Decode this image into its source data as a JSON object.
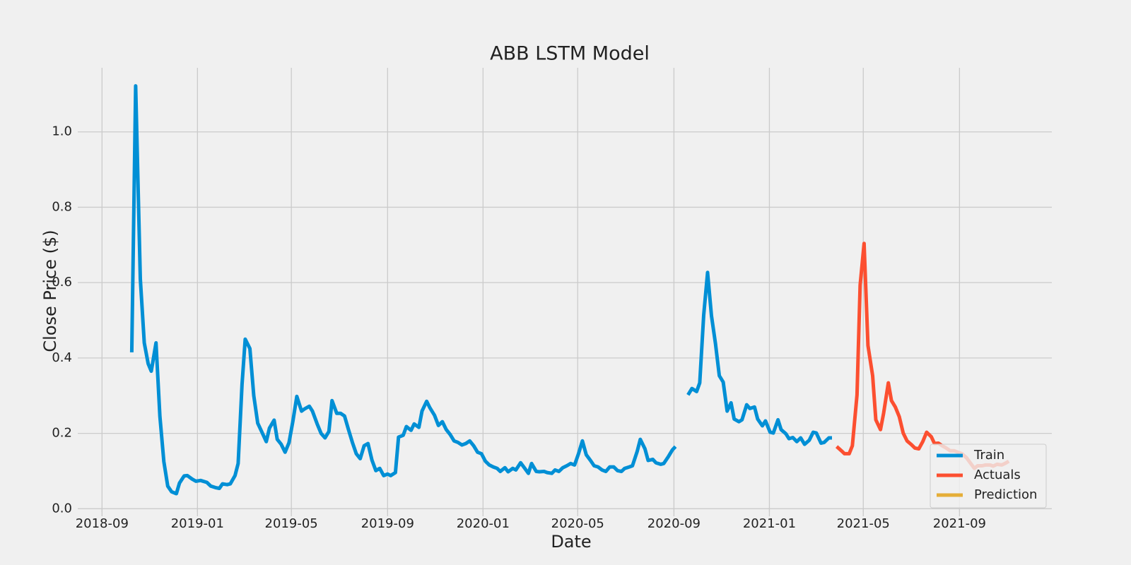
{
  "chart_data": {
    "type": "line",
    "title": "ABB LSTM Model",
    "x_label": "Date",
    "y_label": "Close Price ($)",
    "xlim": [
      "2018-08-01",
      "2021-12-28"
    ],
    "ylim": [
      -0.02,
      1.17
    ],
    "xticks": [
      "2018-09",
      "2019-01",
      "2019-05",
      "2019-09",
      "2020-01",
      "2020-05",
      "2020-09",
      "2021-01",
      "2021-05",
      "2021-09"
    ],
    "yticks": [
      {
        "value": 0,
        "label": "0.0"
      },
      0.2,
      0.4,
      0.6,
      0.8,
      {
        "value": 1,
        "label": "1.0"
      }
    ],
    "grid": true,
    "legend": "lower right",
    "series": [
      {
        "name": "Train",
        "color": "#008fd5",
        "x": [
          "2018-10-09",
          "2018-10-14",
          "2018-10-20",
          "2018-10-25",
          "2018-10-30",
          "2018-11-03",
          "2018-11-09",
          "2018-11-14",
          "2018-11-19",
          "2018-11-24",
          "2018-11-29",
          "2018-12-05",
          "2018-12-09",
          "2018-12-15",
          "2018-12-19",
          "2018-12-25",
          "2018-12-30",
          "2019-01-05",
          "2019-01-13",
          "2019-01-18",
          "2019-01-24",
          "2019-01-29",
          "2019-02-02",
          "2019-02-08",
          "2019-02-12",
          "2019-02-18",
          "2019-02-22",
          "2019-02-27",
          "2019-03-03",
          "2019-03-09",
          "2019-03-14",
          "2019-03-19",
          "2019-03-24",
          "2019-03-30",
          "2019-04-03",
          "2019-04-09",
          "2019-04-13",
          "2019-04-18",
          "2019-04-23",
          "2019-04-28",
          "2019-05-03",
          "2019-05-08",
          "2019-05-14",
          "2019-05-18",
          "2019-05-24",
          "2019-05-28",
          "2019-06-03",
          "2019-06-08",
          "2019-06-13",
          "2019-06-18",
          "2019-06-22",
          "2019-06-28",
          "2019-07-03",
          "2019-07-08",
          "2019-07-13",
          "2019-07-18",
          "2019-07-23",
          "2019-07-28",
          "2019-08-02",
          "2019-08-07",
          "2019-08-12",
          "2019-08-17",
          "2019-08-22",
          "2019-08-27",
          "2019-09-01",
          "2019-09-05",
          "2019-09-11",
          "2019-09-15",
          "2019-09-21",
          "2019-09-25",
          "2019-10-01",
          "2019-10-05",
          "2019-10-11",
          "2019-10-15",
          "2019-10-21",
          "2019-10-25",
          "2019-10-31",
          "2019-11-05",
          "2019-11-10",
          "2019-11-15",
          "2019-11-20",
          "2019-11-25",
          "2019-11-30",
          "2019-12-05",
          "2019-12-10",
          "2019-12-15",
          "2019-12-20",
          "2019-12-25",
          "2019-12-30",
          "2020-01-04",
          "2020-01-09",
          "2020-01-14",
          "2020-01-19",
          "2020-01-23",
          "2020-01-29",
          "2020-02-02",
          "2020-02-08",
          "2020-02-12",
          "2020-02-18",
          "2020-02-22",
          "2020-02-28",
          "2020-03-03",
          "2020-03-09",
          "2020-03-13",
          "2020-03-19",
          "2020-03-23",
          "2020-03-29",
          "2020-04-02",
          "2020-04-07",
          "2020-04-12",
          "2020-04-17",
          "2020-04-22",
          "2020-04-27",
          "2020-05-02",
          "2020-05-07",
          "2020-05-12",
          "2020-05-17",
          "2020-05-22",
          "2020-05-27",
          "2020-06-01",
          "2020-06-06",
          "2020-06-11",
          "2020-06-16",
          "2020-06-21",
          "2020-06-26",
          "2020-06-30",
          "2020-07-06",
          "2020-07-10",
          "2020-07-16",
          "2020-07-20",
          "2020-07-26",
          "2020-07-30",
          "2020-08-05",
          "2020-08-09",
          "2020-08-15",
          "2020-08-19",
          "2020-08-25",
          "2020-08-30",
          "2020-09-03",
          "2020-09-11",
          "2020-09-19",
          "2020-09-24",
          "2020-09-30",
          "2020-10-04",
          "2020-10-09",
          "2020-10-14",
          "2020-10-19",
          "2020-10-24",
          "2020-10-29",
          "2020-11-03",
          "2020-11-08",
          "2020-11-13",
          "2020-11-17",
          "2020-11-23",
          "2020-11-27",
          "2020-12-03",
          "2020-12-07",
          "2020-12-13",
          "2020-12-17",
          "2020-12-23",
          "2020-12-27",
          "2021-01-02",
          "2021-01-06",
          "2021-01-12",
          "2021-01-16",
          "2021-01-22",
          "2021-01-26",
          "2021-01-31",
          "2021-02-05",
          "2021-02-10",
          "2021-02-15",
          "2021-02-21",
          "2021-02-26",
          "2021-03-02",
          "2021-03-08",
          "2021-03-12",
          "2021-03-18",
          "2021-03-22"
        ],
        "values": [
          0.415,
          1.122,
          0.61,
          0.44,
          0.385,
          0.365,
          0.44,
          0.245,
          0.125,
          0.06,
          0.045,
          0.04,
          0.068,
          0.087,
          0.088,
          0.079,
          0.073,
          0.075,
          0.07,
          0.06,
          0.056,
          0.054,
          0.066,
          0.064,
          0.066,
          0.088,
          0.12,
          0.33,
          0.45,
          0.425,
          0.3,
          0.227,
          0.205,
          0.178,
          0.214,
          0.235,
          0.184,
          0.171,
          0.15,
          0.175,
          0.233,
          0.298,
          0.259,
          0.265,
          0.272,
          0.259,
          0.225,
          0.2,
          0.188,
          0.205,
          0.287,
          0.253,
          0.253,
          0.246,
          0.21,
          0.176,
          0.146,
          0.133,
          0.167,
          0.173,
          0.129,
          0.101,
          0.107,
          0.088,
          0.092,
          0.088,
          0.096,
          0.19,
          0.195,
          0.218,
          0.208,
          0.225,
          0.216,
          0.259,
          0.285,
          0.268,
          0.248,
          0.221,
          0.231,
          0.21,
          0.197,
          0.18,
          0.176,
          0.169,
          0.173,
          0.18,
          0.167,
          0.15,
          0.146,
          0.126,
          0.116,
          0.111,
          0.107,
          0.099,
          0.109,
          0.098,
          0.107,
          0.103,
          0.122,
          0.111,
          0.094,
          0.12,
          0.099,
          0.098,
          0.099,
          0.096,
          0.094,
          0.103,
          0.099,
          0.109,
          0.114,
          0.12,
          0.116,
          0.146,
          0.18,
          0.143,
          0.129,
          0.114,
          0.111,
          0.103,
          0.099,
          0.111,
          0.111,
          0.101,
          0.099,
          0.107,
          0.111,
          0.114,
          0.152,
          0.184,
          0.159,
          0.128,
          0.131,
          0.122,
          0.118,
          0.12,
          0.139,
          0.156,
          0.165,
          null,
          0.302,
          0.319,
          0.311,
          0.334,
          0.514,
          0.627,
          0.512,
          0.439,
          0.353,
          0.336,
          0.259,
          0.281,
          0.238,
          0.231,
          0.236,
          0.276,
          0.266,
          0.27,
          0.238,
          0.22,
          0.233,
          0.203,
          0.201,
          0.236,
          0.21,
          0.199,
          0.186,
          0.189,
          0.178,
          0.188,
          0.171,
          0.182,
          0.203,
          0.201,
          0.174,
          0.176,
          0.188,
          0.188
        ]
      },
      {
        "name": "Actuals",
        "color": "#fc4f30",
        "x": [
          "2021-03-28",
          "2021-04-03",
          "2021-04-07",
          "2021-04-13",
          "2021-04-17",
          "2021-04-23",
          "2021-04-27",
          "2021-05-02",
          "2021-05-07",
          "2021-05-13",
          "2021-05-17",
          "2021-05-23",
          "2021-05-27",
          "2021-06-02",
          "2021-06-06",
          "2021-06-11",
          "2021-06-16",
          "2021-06-21",
          "2021-06-26",
          "2021-07-01",
          "2021-07-06",
          "2021-07-11",
          "2021-07-16",
          "2021-07-21",
          "2021-07-27",
          "2021-07-31",
          "2021-08-05",
          "2021-08-10",
          "2021-08-15",
          "2021-08-20",
          "2021-08-25",
          "2021-08-30",
          "2021-09-04",
          "2021-09-10",
          "2021-09-14",
          "2021-09-20",
          "2021-09-24",
          "2021-09-30",
          "2021-10-04",
          "2021-10-10",
          "2021-10-14",
          "2021-10-19",
          "2021-10-25",
          "2021-10-29",
          "2021-11-03"
        ],
        "values": [
          0.165,
          0.154,
          0.146,
          0.146,
          0.167,
          0.302,
          0.593,
          0.704,
          0.433,
          0.353,
          0.236,
          0.21,
          0.253,
          0.334,
          0.287,
          0.27,
          0.244,
          0.201,
          0.18,
          0.171,
          0.161,
          0.159,
          0.178,
          0.203,
          0.191,
          0.173,
          0.174,
          0.167,
          0.161,
          0.154,
          0.154,
          0.15,
          0.146,
          0.135,
          0.124,
          0.107,
          0.114,
          0.114,
          0.116,
          0.116,
          0.113,
          0.118,
          0.116,
          0.12,
          0.126
        ]
      },
      {
        "name": "Prediction",
        "color": "#e5ae38",
        "x": [],
        "values": []
      }
    ]
  }
}
